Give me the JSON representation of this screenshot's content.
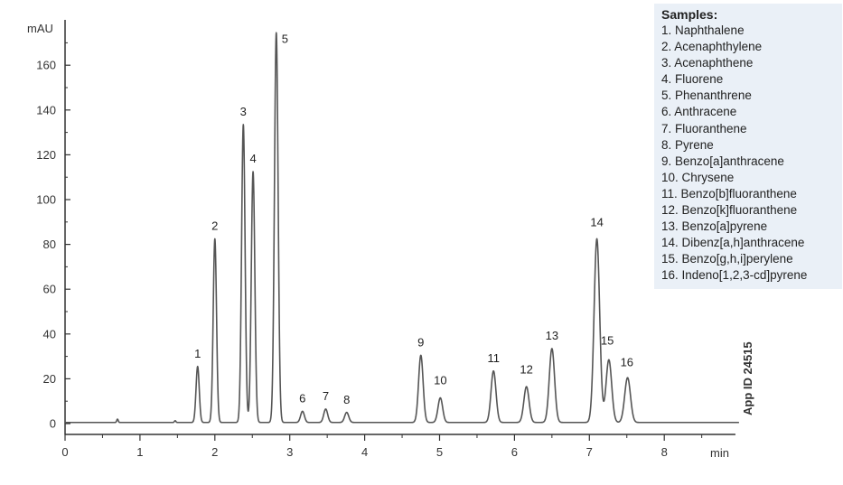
{
  "chart_data": {
    "type": "line",
    "title": "",
    "xlabel": "min",
    "ylabel": "mAU",
    "xlim": [
      0,
      9
    ],
    "ylim": [
      -5,
      180
    ],
    "x_ticks": [
      0,
      1,
      2,
      3,
      4,
      5,
      6,
      7,
      8
    ],
    "y_ticks": [
      0,
      20,
      40,
      60,
      80,
      100,
      120,
      140,
      160
    ],
    "grid": false,
    "baseline": 0.5,
    "peaks": [
      {
        "label": "1",
        "rt": 1.77,
        "height": 25
      },
      {
        "label": "2",
        "rt": 2.0,
        "height": 82
      },
      {
        "label": "3",
        "rt": 2.38,
        "height": 133
      },
      {
        "label": "4",
        "rt": 2.51,
        "height": 112
      },
      {
        "label": "5",
        "rt": 2.82,
        "height": 174
      },
      {
        "label": "6",
        "rt": 3.17,
        "height": 5
      },
      {
        "label": "7",
        "rt": 3.48,
        "height": 6
      },
      {
        "label": "8",
        "rt": 3.76,
        "height": 4.5
      },
      {
        "label": "9",
        "rt": 4.75,
        "height": 30
      },
      {
        "label": "10",
        "rt": 5.01,
        "height": 11
      },
      {
        "label": "11",
        "rt": 5.72,
        "height": 23
      },
      {
        "label": "12",
        "rt": 6.16,
        "height": 16
      },
      {
        "label": "13",
        "rt": 6.5,
        "height": 33
      },
      {
        "label": "14",
        "rt": 7.1,
        "height": 82
      },
      {
        "label": "15",
        "rt": 7.26,
        "height": 28
      },
      {
        "label": "16",
        "rt": 7.51,
        "height": 20
      }
    ],
    "small_disturbances": [
      {
        "rt": 0.7,
        "height": 1.5
      },
      {
        "rt": 1.47,
        "height": 0.8
      }
    ],
    "line_color": "#555555"
  },
  "samples": {
    "title": "Samples:",
    "items": [
      "1. Naphthalene",
      "2. Acenaphthylene",
      "3. Acenaphthene",
      "4. Fluorene",
      "5. Phenanthrene",
      "6. Anthracene",
      "7. Fluoranthene",
      "8. Pyrene",
      "9. Benzo[a]anthracene",
      "10. Chrysene",
      "11. Benzo[b]fluoranthene",
      "12. Benzo[k]fluoranthene",
      "13. Benzo[a]pyrene",
      "14. Dibenz[a,h]anthracene",
      "15. Benzo[g,h,i]perylene",
      "16. Indeno[1,2,3-cd]pyrene"
    ]
  },
  "app_id": "App ID 24515"
}
